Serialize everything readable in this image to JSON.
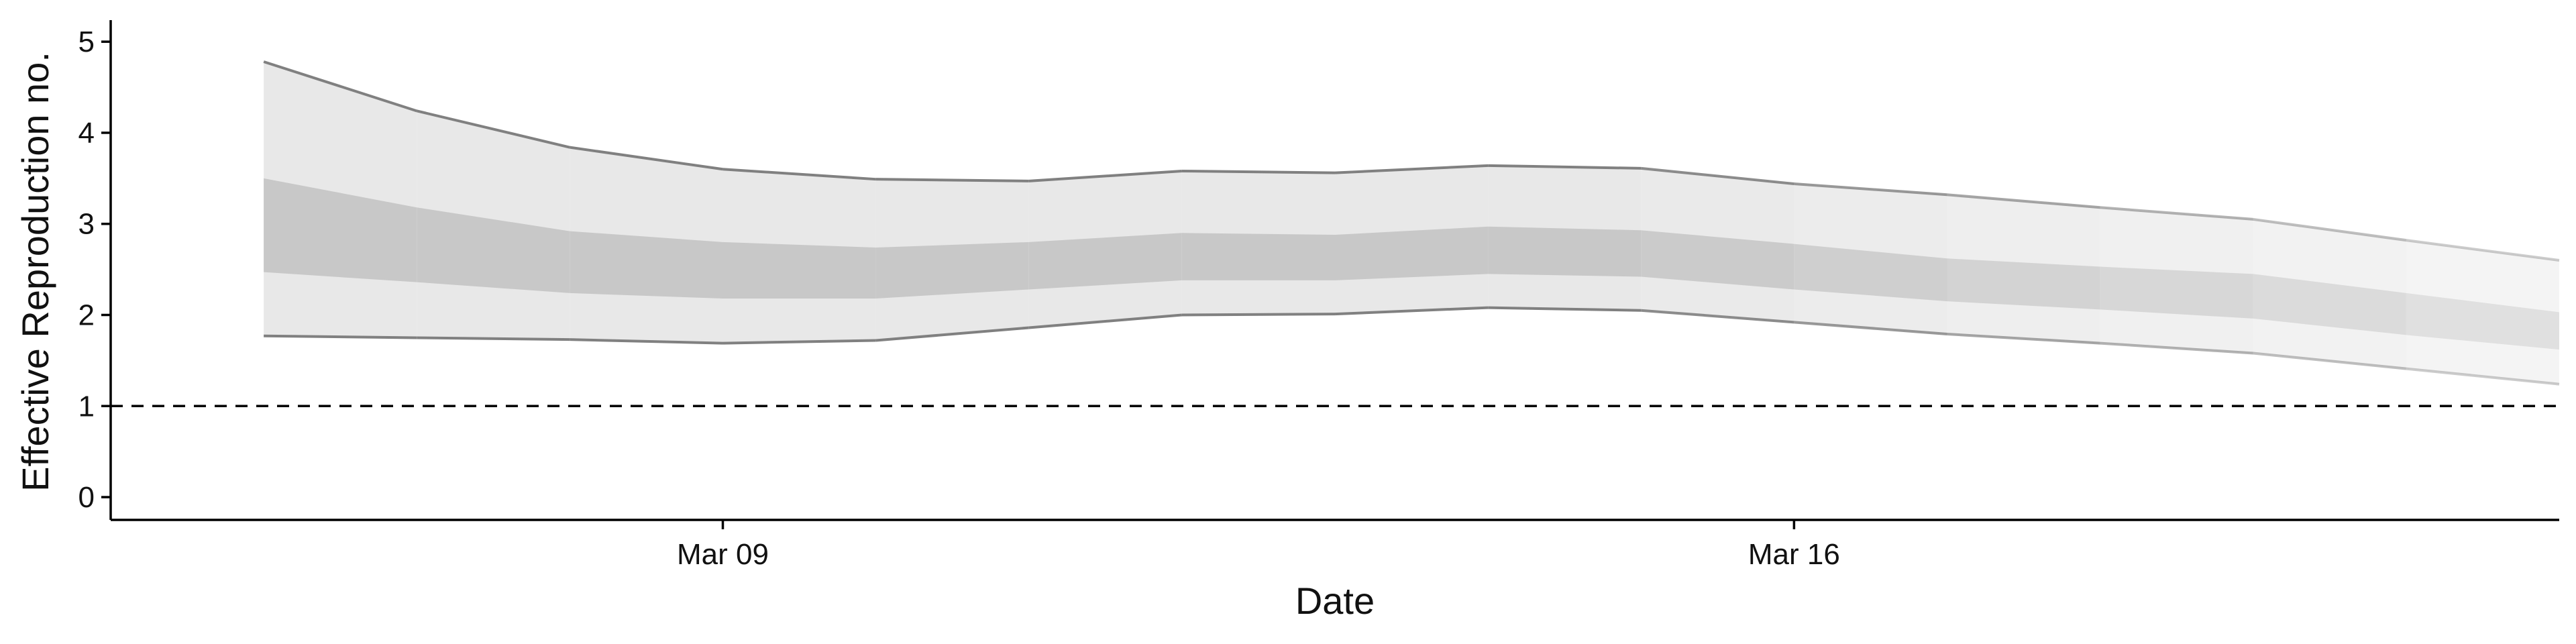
{
  "chart_data": {
    "type": "area",
    "xlabel": "Date",
    "ylabel": "Effective Reproduction no.",
    "ylim": [
      0,
      5
    ],
    "y_ticks": [
      "0",
      "1",
      "2",
      "3",
      "4",
      "5"
    ],
    "x_ticks": [
      {
        "date": "2020-03-09",
        "label": "Mar 09"
      },
      {
        "date": "2020-03-16",
        "label": "Mar 16"
      }
    ],
    "x_range": [
      "2020-03-05",
      "2020-03-21"
    ],
    "reference_line": {
      "y": 1,
      "style": "dashed"
    },
    "colors": {
      "outer_band": "#e8e8e8",
      "inner_band": "#c8c8c8",
      "bound_line": "#808080",
      "axis": "#000000"
    },
    "series": [
      {
        "dates": [
          "2020-03-06",
          "2020-03-07",
          "2020-03-08",
          "2020-03-09",
          "2020-03-10",
          "2020-03-11",
          "2020-03-12",
          "2020-03-13",
          "2020-03-14",
          "2020-03-15",
          "2020-03-16",
          "2020-03-17",
          "2020-03-18",
          "2020-03-19",
          "2020-03-20",
          "2020-03-21"
        ],
        "lower_90": [
          1.77,
          1.75,
          1.73,
          1.69,
          1.72,
          1.86,
          2.0,
          2.01,
          2.08,
          2.05,
          1.92,
          1.79,
          1.69,
          1.58,
          1.41,
          1.24
        ],
        "lower_50": [
          2.47,
          2.36,
          2.24,
          2.18,
          2.18,
          2.28,
          2.38,
          2.38,
          2.45,
          2.42,
          2.28,
          2.15,
          2.06,
          1.96,
          1.78,
          1.62
        ],
        "upper_50": [
          3.5,
          3.18,
          2.92,
          2.8,
          2.74,
          2.8,
          2.9,
          2.88,
          2.97,
          2.93,
          2.78,
          2.62,
          2.53,
          2.45,
          2.24,
          2.03
        ],
        "upper_90": [
          4.78,
          4.24,
          3.84,
          3.6,
          3.49,
          3.47,
          3.58,
          3.56,
          3.64,
          3.61,
          3.44,
          3.32,
          3.18,
          3.05,
          2.82,
          2.6
        ]
      }
    ]
  }
}
